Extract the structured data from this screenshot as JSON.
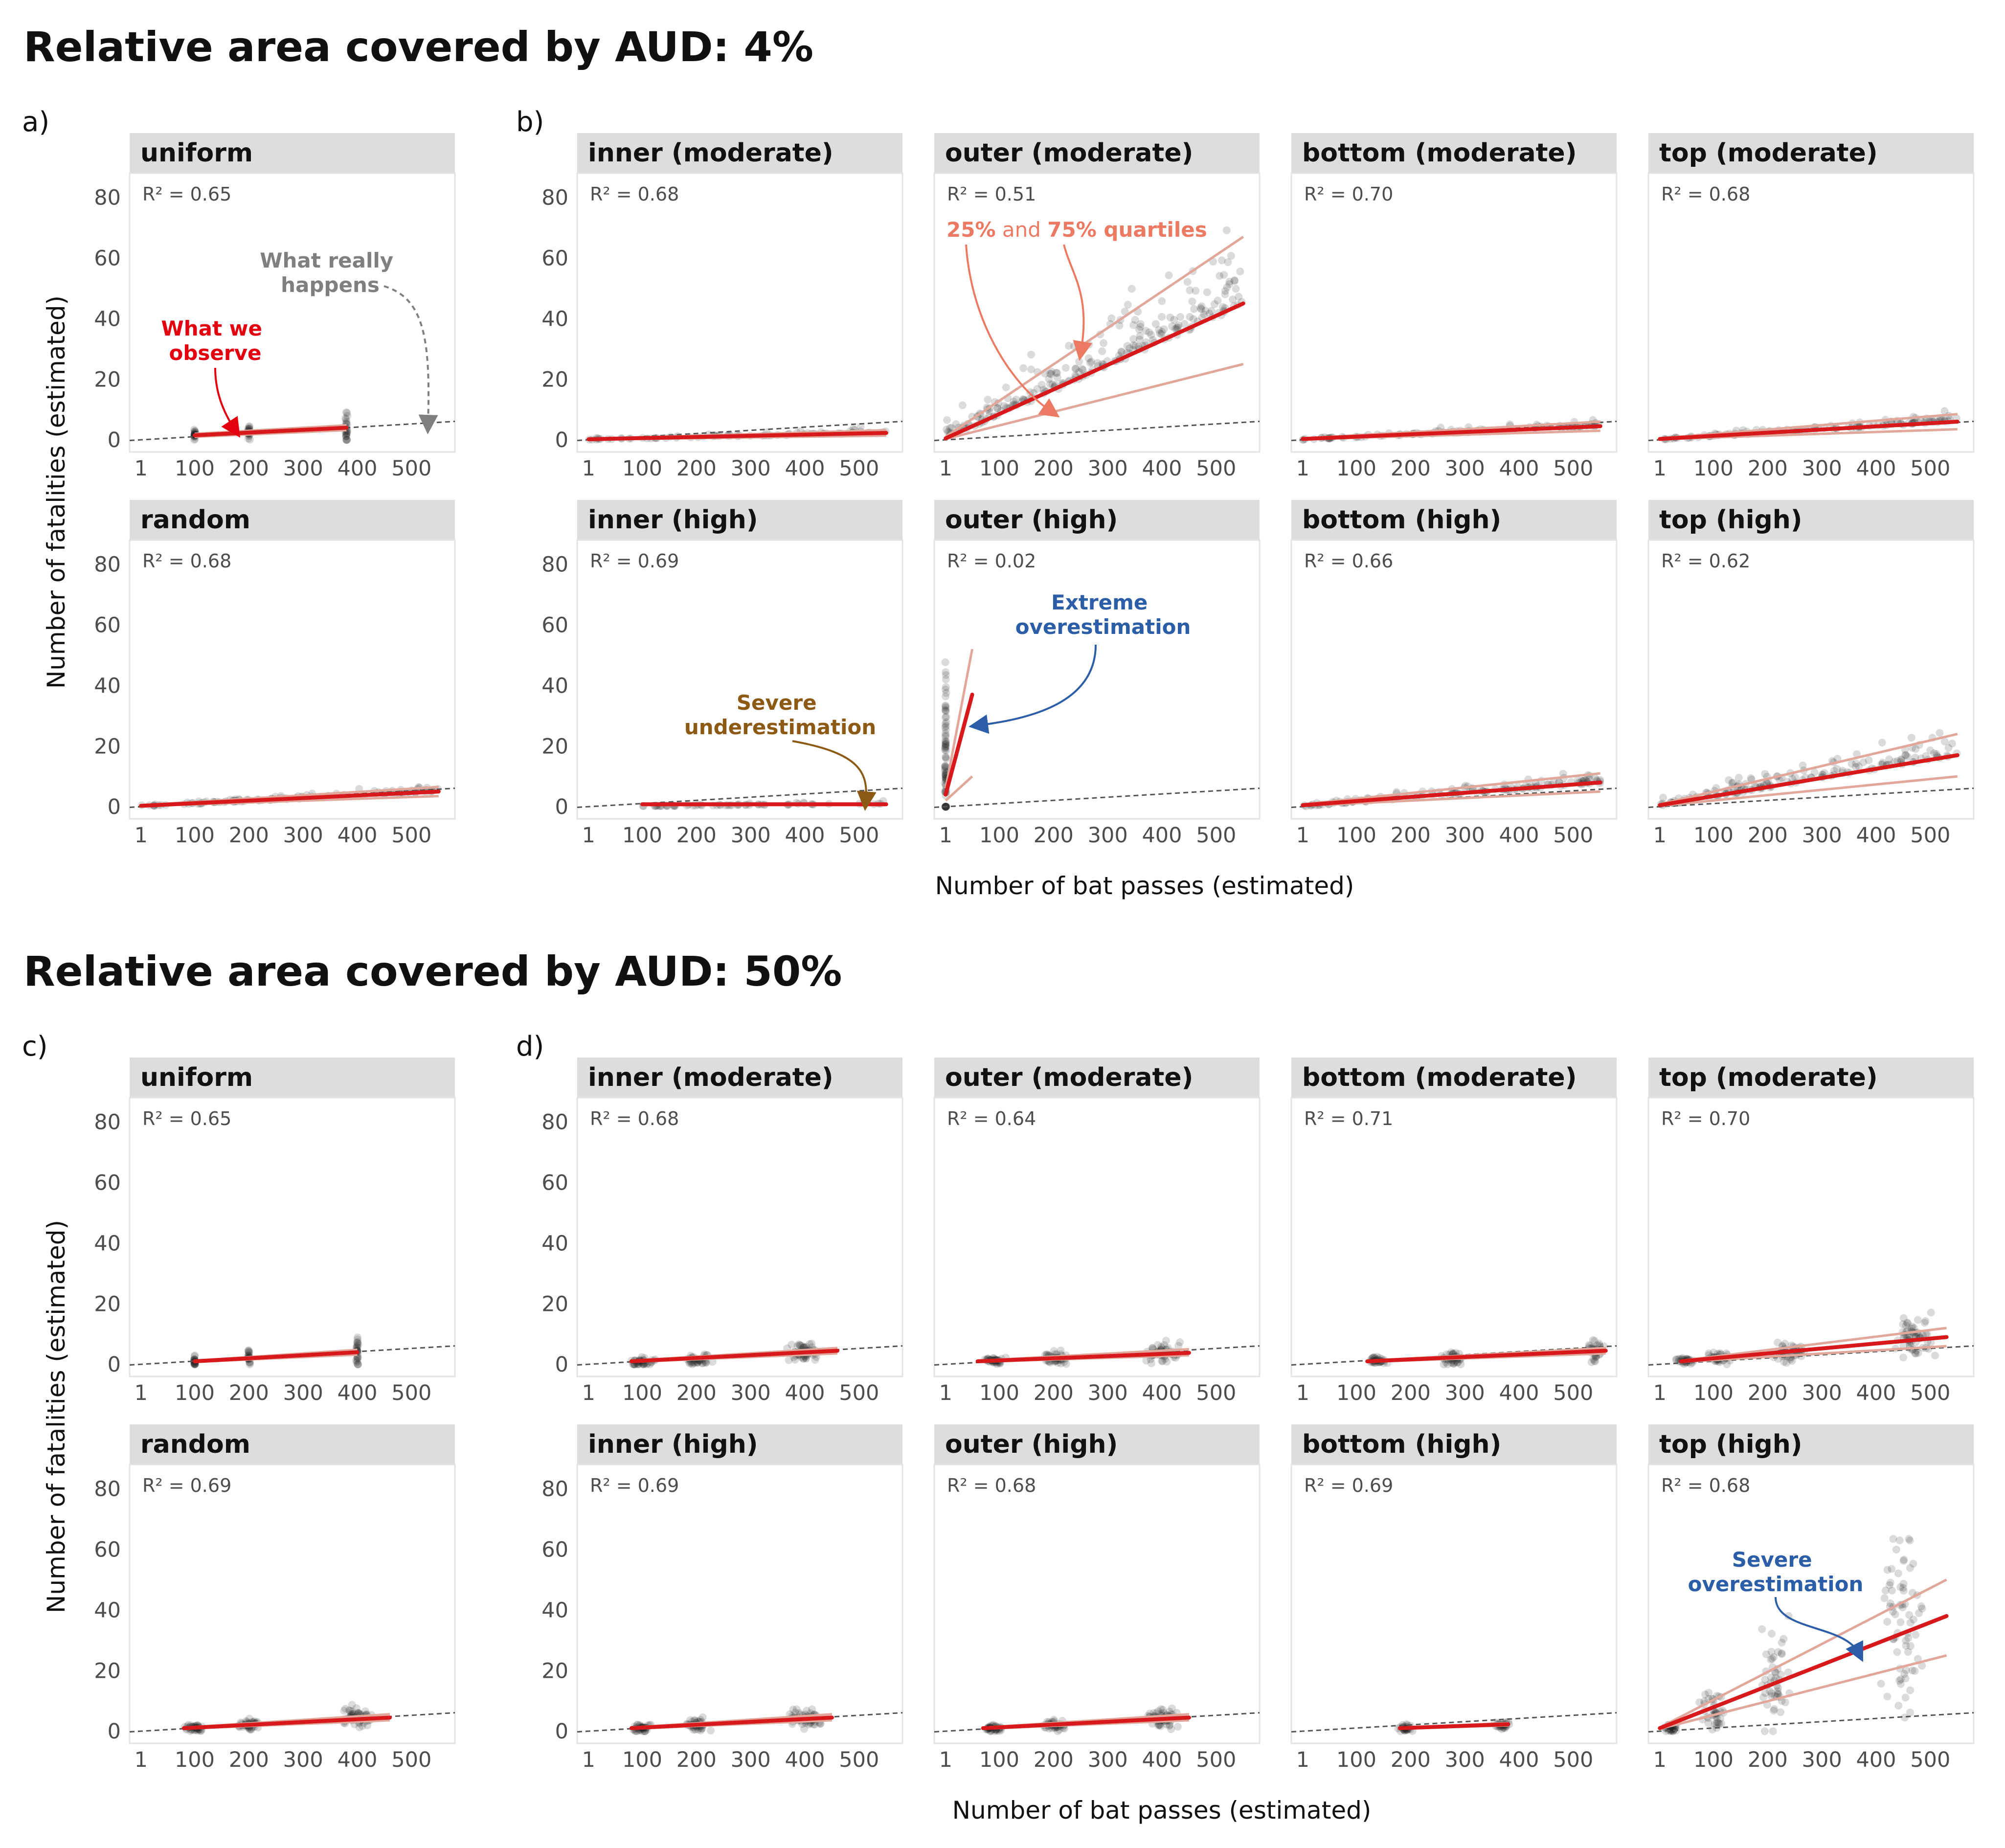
{
  "figure": {
    "sections": [
      {
        "key": "s4",
        "title": "Relative area covered by AUD: 4%",
        "left_label": "a)",
        "right_label": "b)"
      },
      {
        "key": "s50",
        "title": "Relative area covered by AUD: 50%",
        "left_label": "c)",
        "right_label": "d)"
      }
    ],
    "ylabel": "Number of fatalities (estimated)",
    "xlabel": "Number of bat passes (estimated)",
    "r2_prefix": "R² = ",
    "colors": {
      "fit": "#d7191c",
      "quartile": "#e0a79a",
      "reference": "#555555",
      "points": "#222222",
      "strip": "#dddddd",
      "ann_red": "#e3000f",
      "ann_gray": "#7f7f7f",
      "ann_salmon": "#ec7a63",
      "ann_blue": "#2c5ea8",
      "ann_brown": "#8c5a14"
    },
    "annotations": [
      {
        "id": "what-observe",
        "lines": [
          "What we",
          "observe"
        ],
        "color": "ann_red"
      },
      {
        "id": "what-happens",
        "lines": [
          "What really",
          "happens"
        ],
        "color": "ann_gray"
      },
      {
        "id": "quartiles",
        "parts": [
          "25%",
          " and ",
          "75% quartiles"
        ],
        "color": "ann_salmon"
      },
      {
        "id": "extreme-over",
        "lines": [
          "Extreme",
          "overestimation"
        ],
        "color": "ann_blue"
      },
      {
        "id": "severe-under",
        "lines": [
          "Severe",
          "underestimation"
        ],
        "color": "ann_brown"
      },
      {
        "id": "severe-over",
        "lines": [
          "Severe",
          "overestimation"
        ],
        "color": "ann_blue"
      }
    ]
  },
  "chart_data": {
    "type": "scatter",
    "x_ticks": [
      1,
      100,
      200,
      300,
      400,
      500
    ],
    "y_ticks": [
      0,
      20,
      40,
      60,
      80
    ],
    "xlim": [
      -20,
      580
    ],
    "ylim": [
      -4,
      88
    ],
    "panels": [
      {
        "section": "s4",
        "row": 0,
        "col": 0,
        "name": "uniform",
        "r2": "0.65",
        "ref_slope": 0.0105,
        "fit": [
          [
            100,
            1.5
          ],
          [
            380,
            4.0
          ]
        ],
        "q_low": [
          [
            100,
            1.0
          ],
          [
            380,
            3.2
          ]
        ],
        "q_high": [
          [
            100,
            2.0
          ],
          [
            380,
            4.8
          ]
        ],
        "clusters": [
          [
            100,
            1.5,
            3,
            2.5,
            22
          ],
          [
            200,
            2.5,
            3,
            3.5,
            22
          ],
          [
            380,
            4.0,
            3,
            7,
            26
          ]
        ]
      },
      {
        "section": "s4",
        "row": 0,
        "col": 1,
        "name": "inner (moderate)",
        "r2": "0.68",
        "ref_slope": 0.0105,
        "fit": [
          [
            1,
            0.2
          ],
          [
            550,
            2.3
          ]
        ],
        "q_low": [
          [
            1,
            0.1
          ],
          [
            550,
            1.4
          ]
        ],
        "q_high": [
          [
            1,
            0.3
          ],
          [
            550,
            3.2
          ]
        ],
        "spread": [
          1,
          550,
          0.004,
          2.5,
          80
        ]
      },
      {
        "section": "s4",
        "row": 0,
        "col": 2,
        "name": "outer (moderate)",
        "r2": "0.51",
        "ref_slope": 0.0105,
        "fit": [
          [
            1,
            0.5
          ],
          [
            550,
            45
          ]
        ],
        "q_low": [
          [
            1,
            0.3
          ],
          [
            550,
            25
          ]
        ],
        "q_high": [
          [
            1,
            1
          ],
          [
            550,
            67
          ]
        ],
        "spread": [
          1,
          550,
          0.08,
          30,
          240
        ]
      },
      {
        "section": "s4",
        "row": 0,
        "col": 3,
        "name": "bottom (moderate)",
        "r2": "0.70",
        "ref_slope": 0.0105,
        "fit": [
          [
            1,
            0.3
          ],
          [
            550,
            4.5
          ]
        ],
        "q_low": [
          [
            1,
            0.2
          ],
          [
            550,
            3
          ]
        ],
        "q_high": [
          [
            1,
            0.5
          ],
          [
            550,
            6
          ]
        ],
        "spread": [
          1,
          550,
          0.008,
          3,
          110
        ]
      },
      {
        "section": "s4",
        "row": 0,
        "col": 4,
        "name": "top (moderate)",
        "r2": "0.68",
        "ref_slope": 0.0105,
        "fit": [
          [
            1,
            0.3
          ],
          [
            550,
            6
          ]
        ],
        "q_low": [
          [
            1,
            0.2
          ],
          [
            550,
            3.5
          ]
        ],
        "q_high": [
          [
            1,
            0.5
          ],
          [
            550,
            8.5
          ]
        ],
        "spread": [
          1,
          550,
          0.011,
          4,
          120
        ]
      },
      {
        "section": "s4",
        "row": 1,
        "col": 0,
        "name": "random",
        "r2": "0.68",
        "ref_slope": 0.0105,
        "fit": [
          [
            1,
            0.3
          ],
          [
            550,
            5
          ]
        ],
        "q_low": [
          [
            1,
            0.2
          ],
          [
            550,
            3.5
          ]
        ],
        "q_high": [
          [
            1,
            0.5
          ],
          [
            550,
            6.5
          ]
        ],
        "spread": [
          1,
          550,
          0.009,
          3,
          110
        ]
      },
      {
        "section": "s4",
        "row": 1,
        "col": 1,
        "name": "inner (high)",
        "r2": "0.69",
        "ref_slope": 0.0105,
        "fit": [
          [
            100,
            0.8
          ],
          [
            550,
            0.8
          ]
        ],
        "q_low": [
          [
            100,
            0.6
          ],
          [
            550,
            0.6
          ]
        ],
        "q_high": [
          [
            100,
            1.0
          ],
          [
            550,
            1.0
          ]
        ],
        "spread": [
          100,
          550,
          0.0015,
          1,
          60
        ]
      },
      {
        "section": "s4",
        "row": 1,
        "col": 2,
        "name": "outer (high)",
        "r2": "0.02",
        "ref_slope": 0.0105,
        "fit": [
          [
            1,
            4
          ],
          [
            50,
            37
          ]
        ],
        "q_low": [
          [
            1,
            2
          ],
          [
            50,
            10
          ]
        ],
        "q_high": [
          [
            1,
            6
          ],
          [
            50,
            52
          ]
        ],
        "clusters": [
          [
            1,
            20,
            2,
            44,
            80
          ]
        ]
      },
      {
        "section": "s4",
        "row": 1,
        "col": 3,
        "name": "bottom (high)",
        "r2": "0.66",
        "ref_slope": 0.0105,
        "fit": [
          [
            1,
            0.5
          ],
          [
            550,
            8
          ]
        ],
        "q_low": [
          [
            1,
            0.3
          ],
          [
            550,
            5
          ]
        ],
        "q_high": [
          [
            1,
            0.8
          ],
          [
            550,
            11
          ]
        ],
        "spread": [
          1,
          550,
          0.014,
          6,
          140
        ]
      },
      {
        "section": "s4",
        "row": 1,
        "col": 4,
        "name": "top (high)",
        "r2": "0.62",
        "ref_slope": 0.0105,
        "fit": [
          [
            1,
            0.5
          ],
          [
            550,
            17
          ]
        ],
        "q_low": [
          [
            1,
            0.3
          ],
          [
            550,
            10
          ]
        ],
        "q_high": [
          [
            1,
            0.8
          ],
          [
            550,
            24
          ]
        ],
        "spread": [
          1,
          550,
          0.031,
          12,
          160
        ]
      },
      {
        "section": "s50",
        "row": 0,
        "col": 0,
        "name": "uniform",
        "r2": "0.65",
        "ref_slope": 0.0105,
        "fit": [
          [
            100,
            1
          ],
          [
            400,
            4
          ]
        ],
        "q_low": [
          [
            100,
            0.8
          ],
          [
            400,
            3.2
          ]
        ],
        "q_high": [
          [
            100,
            1.2
          ],
          [
            400,
            4.8
          ]
        ],
        "clusters": [
          [
            100,
            1,
            3,
            2.5,
            22
          ],
          [
            200,
            2,
            3,
            3.5,
            22
          ],
          [
            400,
            4,
            3,
            8,
            28
          ]
        ]
      },
      {
        "section": "s50",
        "row": 0,
        "col": 1,
        "name": "inner (moderate)",
        "r2": "0.68",
        "ref_slope": 0.0105,
        "fit": [
          [
            80,
            1
          ],
          [
            460,
            4.5
          ]
        ],
        "q_low": [
          [
            80,
            0.8
          ],
          [
            460,
            3.6
          ]
        ],
        "q_high": [
          [
            80,
            1.2
          ],
          [
            460,
            5.4
          ]
        ],
        "clusters": [
          [
            100,
            1,
            30,
            2,
            40
          ],
          [
            200,
            2,
            35,
            3,
            40
          ],
          [
            400,
            4,
            40,
            5,
            55
          ]
        ]
      },
      {
        "section": "s50",
        "row": 0,
        "col": 2,
        "name": "outer (moderate)",
        "r2": "0.64",
        "ref_slope": 0.0105,
        "fit": [
          [
            60,
            1
          ],
          [
            450,
            3.8
          ]
        ],
        "q_low": [
          [
            60,
            0.8
          ],
          [
            450,
            3
          ]
        ],
        "q_high": [
          [
            60,
            1.2
          ],
          [
            450,
            5
          ]
        ],
        "clusters": [
          [
            90,
            1,
            30,
            2,
            40
          ],
          [
            200,
            2,
            35,
            3,
            40
          ],
          [
            400,
            4,
            40,
            5,
            55
          ]
        ]
      },
      {
        "section": "s50",
        "row": 0,
        "col": 3,
        "name": "bottom (moderate)",
        "r2": "0.71",
        "ref_slope": 0.0105,
        "fit": [
          [
            120,
            1
          ],
          [
            560,
            4.5
          ]
        ],
        "q_low": [
          [
            120,
            0.8
          ],
          [
            560,
            3.6
          ]
        ],
        "q_high": [
          [
            120,
            1.2
          ],
          [
            560,
            5.4
          ]
        ],
        "clusters": [
          [
            140,
            1,
            25,
            2,
            35
          ],
          [
            280,
            2,
            30,
            3,
            40
          ],
          [
            540,
            4.5,
            20,
            5,
            30
          ]
        ]
      },
      {
        "section": "s50",
        "row": 0,
        "col": 4,
        "name": "top (moderate)",
        "r2": "0.70",
        "ref_slope": 0.0105,
        "fit": [
          [
            40,
            1
          ],
          [
            530,
            9
          ]
        ],
        "q_low": [
          [
            40,
            0.8
          ],
          [
            530,
            6
          ]
        ],
        "q_high": [
          [
            40,
            1.2
          ],
          [
            530,
            12
          ]
        ],
        "clusters": [
          [
            50,
            1,
            25,
            2,
            30
          ],
          [
            110,
            2,
            30,
            3,
            35
          ],
          [
            240,
            4,
            40,
            5,
            45
          ],
          [
            470,
            9,
            50,
            10,
            60
          ]
        ]
      },
      {
        "section": "s50",
        "row": 1,
        "col": 0,
        "name": "random",
        "r2": "0.69",
        "ref_slope": 0.0105,
        "fit": [
          [
            80,
            1
          ],
          [
            460,
            4.5
          ]
        ],
        "q_low": [
          [
            80,
            0.8
          ],
          [
            460,
            3.6
          ]
        ],
        "q_high": [
          [
            80,
            1.2
          ],
          [
            460,
            5.6
          ]
        ],
        "clusters": [
          [
            100,
            1,
            25,
            2,
            40
          ],
          [
            200,
            2.5,
            30,
            3,
            40
          ],
          [
            400,
            4.5,
            40,
            5,
            55
          ]
        ]
      },
      {
        "section": "s50",
        "row": 1,
        "col": 1,
        "name": "inner (high)",
        "r2": "0.69",
        "ref_slope": 0.0105,
        "fit": [
          [
            80,
            1
          ],
          [
            450,
            4.5
          ]
        ],
        "q_low": [
          [
            80,
            0.8
          ],
          [
            450,
            3.6
          ]
        ],
        "q_high": [
          [
            80,
            1.2
          ],
          [
            450,
            5.6
          ]
        ],
        "clusters": [
          [
            100,
            1,
            25,
            2,
            40
          ],
          [
            200,
            2,
            30,
            3,
            40
          ],
          [
            400,
            4.5,
            40,
            5,
            55
          ]
        ]
      },
      {
        "section": "s50",
        "row": 1,
        "col": 2,
        "name": "outer (high)",
        "r2": "0.68",
        "ref_slope": 0.0105,
        "fit": [
          [
            70,
            1
          ],
          [
            450,
            4.5
          ]
        ],
        "q_low": [
          [
            70,
            0.8
          ],
          [
            450,
            3.6
          ]
        ],
        "q_high": [
          [
            70,
            1.2
          ],
          [
            450,
            5.6
          ]
        ],
        "clusters": [
          [
            90,
            1,
            25,
            2,
            40
          ],
          [
            200,
            2,
            30,
            3,
            40
          ],
          [
            400,
            4.5,
            40,
            5,
            55
          ]
        ]
      },
      {
        "section": "s50",
        "row": 1,
        "col": 3,
        "name": "bottom (high)",
        "r2": "0.69",
        "ref_slope": 0.0105,
        "fit": [
          [
            180,
            1
          ],
          [
            380,
            2.3
          ]
        ],
        "q_low": [
          [
            180,
            0.9
          ],
          [
            380,
            1.9
          ]
        ],
        "q_high": [
          [
            180,
            1.1
          ],
          [
            380,
            2.7
          ]
        ],
        "clusters": [
          [
            190,
            1,
            15,
            1.5,
            30
          ],
          [
            370,
            2,
            20,
            2,
            30
          ]
        ]
      },
      {
        "section": "s50",
        "row": 1,
        "col": 4,
        "name": "top (high)",
        "r2": "0.68",
        "ref_slope": 0.0105,
        "fit": [
          [
            1,
            1
          ],
          [
            530,
            38
          ]
        ],
        "q_low": [
          [
            1,
            0.8
          ],
          [
            530,
            25
          ]
        ],
        "q_high": [
          [
            1,
            1.2
          ],
          [
            530,
            50
          ]
        ],
        "clusters": [
          [
            20,
            1,
            15,
            2,
            30
          ],
          [
            100,
            6,
            35,
            10,
            40
          ],
          [
            210,
            18,
            40,
            25,
            50
          ],
          [
            450,
            35,
            50,
            45,
            70
          ]
        ]
      }
    ]
  }
}
